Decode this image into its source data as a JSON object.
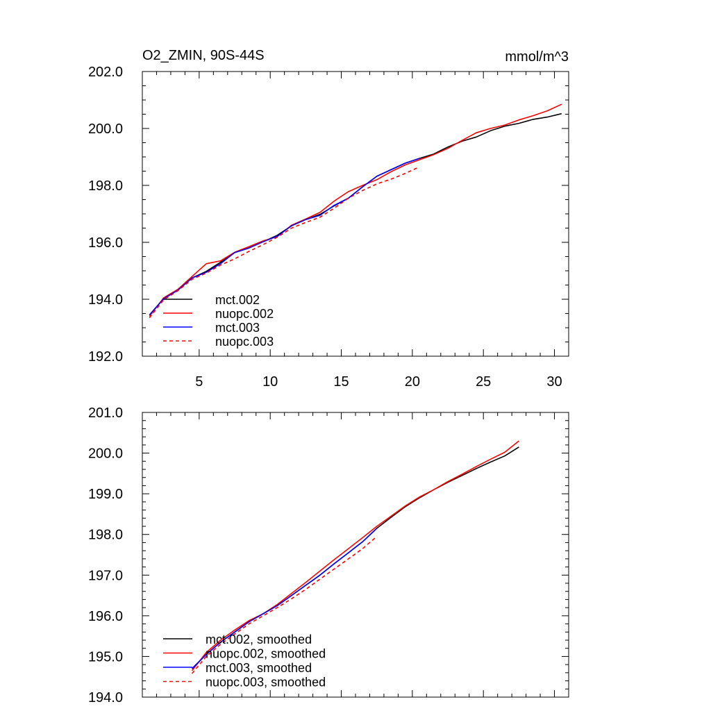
{
  "chart_data": [
    {
      "type": "line",
      "title": "O2_ZMIN, 90S-44S",
      "units": "mmol/m^3",
      "xlim": [
        1,
        31
      ],
      "ylim": [
        192,
        202
      ],
      "xticks": [
        5,
        10,
        15,
        20,
        25,
        30
      ],
      "xtick_labels": [
        "5",
        "10",
        "15",
        "20",
        "25",
        "30"
      ],
      "yticks": [
        192,
        194,
        196,
        198,
        200,
        202
      ],
      "ytick_labels": [
        "192.0",
        "194.0",
        "196.0",
        "198.0",
        "200.0",
        "202.0"
      ],
      "grid": false,
      "legend": "bottom-left",
      "series": [
        {
          "name": "mct.002",
          "color": "#000000",
          "dash": false,
          "x": [
            1.5,
            2.5,
            3.5,
            4.5,
            5.5,
            6.5,
            7.5,
            8.5,
            9.5,
            10.5,
            11.5,
            12.5,
            13.5,
            14.5,
            15.5,
            16.5,
            17.5,
            18.5,
            19.5,
            20.5,
            21.5,
            22.5,
            23.5,
            24.5,
            25.5,
            26.5,
            27.5,
            28.5,
            29.5,
            30.5
          ],
          "y": [
            193.45,
            194.02,
            194.32,
            194.75,
            194.98,
            195.3,
            195.64,
            195.8,
            196.02,
            196.25,
            196.58,
            196.8,
            196.98,
            197.28,
            197.55,
            197.95,
            198.32,
            198.55,
            198.78,
            198.95,
            199.1,
            199.35,
            199.55,
            199.7,
            199.92,
            200.08,
            200.18,
            200.32,
            200.4,
            200.52
          ]
        },
        {
          "name": "nuopc.002",
          "color": "#ff0000",
          "dash": false,
          "x": [
            1.5,
            2.5,
            3.5,
            4.5,
            5.5,
            6.5,
            7.5,
            8.5,
            9.5,
            10.5,
            11.5,
            12.5,
            13.5,
            14.5,
            15.5,
            16.5,
            17.5,
            18.5,
            19.5,
            20.5,
            21.5,
            22.5,
            23.5,
            24.5,
            25.5,
            26.5,
            27.5,
            28.5,
            29.5,
            30.5
          ],
          "y": [
            193.4,
            194.05,
            194.35,
            194.8,
            195.25,
            195.35,
            195.65,
            195.85,
            196.05,
            196.2,
            196.6,
            196.82,
            197.05,
            197.45,
            197.78,
            198.0,
            198.2,
            198.48,
            198.72,
            198.9,
            199.08,
            199.3,
            199.58,
            199.85,
            200.0,
            200.12,
            200.3,
            200.45,
            200.62,
            200.85
          ]
        },
        {
          "name": "mct.003",
          "color": "#0000ff",
          "dash": false,
          "x": [
            1.5,
            2.5,
            3.5,
            4.5,
            5.5,
            6.5,
            7.5,
            8.5,
            9.5,
            10.5,
            11.5,
            12.5,
            13.5,
            14.5,
            15.5,
            16.5,
            17.5,
            18.5,
            19.5,
            20.5
          ],
          "y": [
            193.45,
            194.02,
            194.32,
            194.75,
            194.95,
            195.25,
            195.64,
            195.8,
            196.02,
            196.22,
            196.58,
            196.8,
            196.95,
            197.3,
            197.55,
            197.95,
            198.32,
            198.55,
            198.78,
            198.95
          ]
        },
        {
          "name": "nuopc.003",
          "color": "#ff0000",
          "dash": true,
          "x": [
            1.5,
            2.5,
            3.5,
            4.5,
            5.5,
            6.5,
            7.5,
            8.5,
            9.5,
            10.5,
            11.5,
            12.5,
            13.5,
            14.5,
            15.5,
            16.5,
            17.5,
            18.5,
            19.5,
            20.5
          ],
          "y": [
            193.35,
            193.98,
            194.3,
            194.7,
            194.92,
            195.2,
            195.42,
            195.68,
            195.92,
            196.18,
            196.5,
            196.7,
            196.88,
            197.2,
            197.55,
            197.82,
            198.05,
            198.22,
            198.42,
            198.65
          ]
        }
      ]
    },
    {
      "type": "line",
      "xlim": [
        1,
        31
      ],
      "ylim": [
        194,
        201
      ],
      "xticks": [
        5,
        10,
        15,
        20,
        25,
        30
      ],
      "yticks": [
        194,
        195,
        196,
        197,
        198,
        199,
        200,
        201
      ],
      "ytick_labels": [
        "194.0",
        "195.0",
        "196.0",
        "197.0",
        "198.0",
        "199.0",
        "200.0",
        "201.0"
      ],
      "grid": false,
      "legend": "bottom-left",
      "series": [
        {
          "name": "mct.002, smoothed",
          "color": "#000000",
          "dash": false,
          "x": [
            4.5,
            5.5,
            6.5,
            7.5,
            8.5,
            9.5,
            10.5,
            11.5,
            12.5,
            13.5,
            14.5,
            15.5,
            16.5,
            17.5,
            18.5,
            19.5,
            20.5,
            21.5,
            22.5,
            23.5,
            24.5,
            25.5,
            26.5,
            27.5
          ],
          "y": [
            194.7,
            195.05,
            195.35,
            195.6,
            195.85,
            196.05,
            196.25,
            196.5,
            196.75,
            197.0,
            197.28,
            197.55,
            197.82,
            198.15,
            198.42,
            198.68,
            198.9,
            199.1,
            199.28,
            199.45,
            199.62,
            199.78,
            199.93,
            200.15
          ]
        },
        {
          "name": "nuopc.002, smoothed",
          "color": "#ff0000",
          "dash": false,
          "x": [
            4.5,
            5.5,
            6.5,
            7.5,
            8.5,
            9.5,
            10.5,
            11.5,
            12.5,
            13.5,
            14.5,
            15.5,
            16.5,
            17.5,
            18.5,
            19.5,
            20.5,
            21.5,
            22.5,
            23.5,
            24.5,
            25.5,
            26.5,
            27.5
          ],
          "y": [
            194.65,
            195.1,
            195.4,
            195.65,
            195.88,
            196.05,
            196.28,
            196.55,
            196.82,
            197.1,
            197.38,
            197.65,
            197.92,
            198.2,
            198.45,
            198.7,
            198.92,
            199.1,
            199.3,
            199.48,
            199.67,
            199.85,
            200.02,
            200.3
          ]
        },
        {
          "name": "mct.003, smoothed",
          "color": "#0000ff",
          "dash": false,
          "x": [
            4.5,
            5.5,
            6.5,
            7.5,
            8.5,
            9.5,
            10.5,
            11.5,
            12.5,
            13.5,
            14.5,
            15.5,
            16.5,
            17.5
          ],
          "y": [
            194.7,
            195.05,
            195.35,
            195.6,
            195.85,
            196.05,
            196.25,
            196.5,
            196.75,
            197.0,
            197.28,
            197.55,
            197.82,
            198.15
          ]
        },
        {
          "name": "nuopc.003, smoothed",
          "color": "#ff0000",
          "dash": true,
          "x": [
            4.5,
            5.5,
            6.5,
            7.5,
            8.5,
            9.5,
            10.5,
            11.5,
            12.5,
            13.5,
            14.5,
            15.5,
            16.5,
            17.5
          ],
          "y": [
            194.58,
            195.0,
            195.3,
            195.55,
            195.8,
            196.0,
            196.2,
            196.42,
            196.65,
            196.9,
            197.15,
            197.4,
            197.65,
            197.95
          ]
        }
      ]
    }
  ]
}
